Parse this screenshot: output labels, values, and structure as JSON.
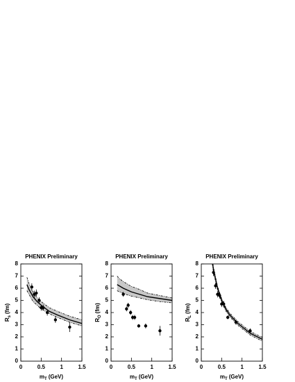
{
  "chart_data": [
    {
      "type": "scatter",
      "title": "PHENIX Preliminary",
      "ylabel": {
        "main": "R",
        "sub": "s",
        "unit": "(fm)"
      },
      "xlabel": {
        "main": "m",
        "sub": "T",
        "unit": "(GeV)"
      },
      "xlim": [
        0,
        1.5
      ],
      "ylim": [
        0,
        8
      ],
      "xticks": [
        0,
        0.5,
        1,
        1.5
      ],
      "yticks": [
        0,
        1,
        2,
        3,
        4,
        5,
        6,
        7,
        8
      ],
      "x": [
        0.27,
        0.33,
        0.38,
        0.45,
        0.5,
        0.55,
        0.65,
        0.85,
        1.2
      ],
      "values": [
        6.1,
        5.5,
        5.6,
        5.0,
        4.4,
        4.4,
        4.0,
        3.4,
        2.8
      ],
      "errors": [
        0.3,
        0.3,
        0.3,
        0.25,
        0.25,
        0.25,
        0.25,
        0.25,
        0.4
      ],
      "curve": {
        "x": [
          0.15,
          0.2,
          0.3,
          0.4,
          0.5,
          0.7,
          0.9,
          1.2,
          1.5
        ],
        "solid": [
          6.3,
          5.9,
          5.3,
          4.9,
          4.6,
          4.1,
          3.8,
          3.4,
          3.1
        ],
        "upper": [
          6.9,
          6.4,
          5.7,
          5.2,
          4.9,
          4.4,
          4.1,
          3.7,
          3.4
        ],
        "lower": [
          5.8,
          5.5,
          4.9,
          4.6,
          4.3,
          3.9,
          3.6,
          3.2,
          2.9
        ]
      }
    },
    {
      "type": "scatter",
      "title": "PHENIX Preliminary",
      "ylabel": {
        "main": "R",
        "sub": "O",
        "unit": "(fm)"
      },
      "xlabel": {
        "main": "m",
        "sub": "T",
        "unit": "(GeV)"
      },
      "xlim": [
        0,
        1.5
      ],
      "ylim": [
        0,
        8
      ],
      "xticks": [
        0,
        0.5,
        1,
        1.5
      ],
      "yticks": [
        0,
        1,
        2,
        3,
        4,
        5,
        6,
        7,
        8
      ],
      "x": [
        0.3,
        0.38,
        0.42,
        0.48,
        0.53,
        0.58,
        0.68,
        0.85,
        1.2
      ],
      "values": [
        5.5,
        4.3,
        4.6,
        4.0,
        3.6,
        3.6,
        2.9,
        2.9,
        2.5
      ],
      "errors": [
        0.2,
        0.2,
        0.2,
        0.2,
        0.2,
        0.2,
        0.15,
        0.2,
        0.4
      ],
      "curve": {
        "x": [
          0.15,
          0.2,
          0.3,
          0.4,
          0.5,
          0.7,
          0.9,
          1.2,
          1.5
        ],
        "solid": [
          6.3,
          6.2,
          6.0,
          5.85,
          5.7,
          5.5,
          5.3,
          5.15,
          5.0
        ],
        "upper": [
          7.0,
          6.8,
          6.55,
          6.35,
          6.15,
          5.9,
          5.6,
          5.4,
          5.2
        ],
        "lower": [
          5.8,
          5.7,
          5.6,
          5.45,
          5.35,
          5.2,
          5.05,
          4.9,
          4.8
        ]
      }
    },
    {
      "type": "scatter",
      "title": "PHENIX Preliminary",
      "ylabel": {
        "main": "R",
        "sub": "L",
        "unit": "(fm)"
      },
      "xlabel": {
        "main": "m",
        "sub": "T",
        "unit": "(GeV)"
      },
      "xlim": [
        0,
        1.5
      ],
      "ylim": [
        0,
        8
      ],
      "xticks": [
        0,
        0.5,
        1,
        1.5
      ],
      "yticks": [
        0,
        1,
        2,
        3,
        4,
        5,
        6,
        7,
        8
      ],
      "x": [
        0.3,
        0.35,
        0.4,
        0.45,
        0.5,
        0.55,
        0.65,
        0.85,
        1.2
      ],
      "values": [
        7.3,
        6.2,
        5.5,
        5.4,
        4.7,
        4.7,
        3.6,
        3.2,
        2.5
      ],
      "errors": [
        0.3,
        0.25,
        0.25,
        0.25,
        0.25,
        0.25,
        0.15,
        0.2,
        0.2
      ],
      "curve": {
        "x": [
          0.27,
          0.3,
          0.4,
          0.5,
          0.6,
          0.7,
          0.9,
          1.2,
          1.5
        ],
        "solid": [
          8.2,
          7.5,
          6.0,
          5.0,
          4.3,
          3.8,
          3.1,
          2.3,
          1.8
        ],
        "upper": [
          8.4,
          7.7,
          6.15,
          5.15,
          4.45,
          3.95,
          3.25,
          2.45,
          1.95
        ],
        "lower": [
          8.0,
          7.3,
          5.85,
          4.85,
          4.15,
          3.65,
          2.95,
          2.15,
          1.65
        ]
      }
    }
  ]
}
